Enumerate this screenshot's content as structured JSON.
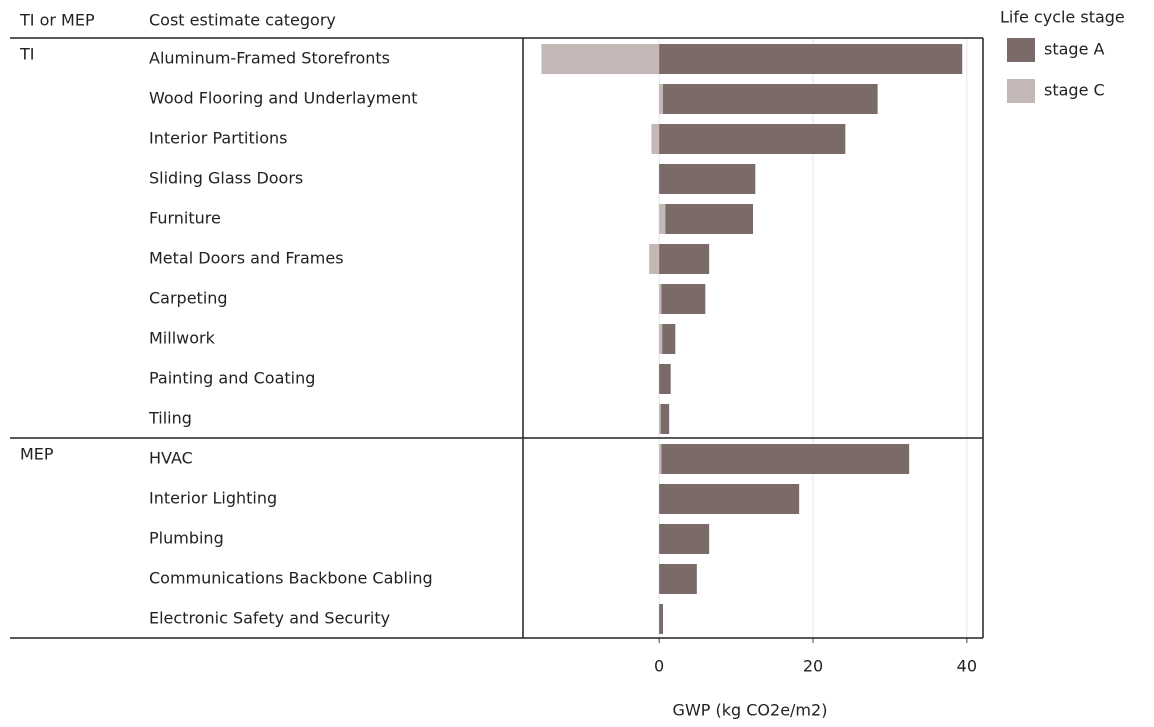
{
  "chart_data": {
    "type": "bar",
    "orientation": "horizontal",
    "stacked": true,
    "group_header": "TI or MEP",
    "category_header": "Cost estimate category",
    "group_labels": [
      "TI",
      null,
      null,
      null,
      null,
      null,
      null,
      null,
      null,
      null,
      "MEP",
      null,
      null,
      null,
      null
    ],
    "categories": [
      "Aluminum-Framed Storefronts",
      "Wood Flooring and Underlayment",
      "Interior Partitions",
      "Sliding Glass Doors",
      "Furniture",
      "Metal Doors and Frames",
      "Carpeting",
      "Millwork",
      "Painting and Coating",
      "Tiling",
      "HVAC",
      "Interior Lighting",
      "Plumbing",
      "Communications Backbone Cabling",
      "Electronic Safety and Security"
    ],
    "series": [
      {
        "name": "stage A",
        "color": "#7a6b68",
        "values": [
          39.4,
          27.9,
          24.2,
          12.5,
          11.4,
          6.5,
          5.7,
          1.7,
          1.5,
          1.1,
          32.2,
          18.2,
          6.5,
          4.9,
          0.5
        ]
      },
      {
        "name": "stage C",
        "color": "#c3b8b5",
        "values": [
          -15.3,
          0.5,
          -1.0,
          0,
          0.8,
          -1.3,
          0.3,
          0.4,
          0,
          0.2,
          0.3,
          0,
          0,
          0,
          0
        ]
      }
    ],
    "legend_title": "Life cycle stage",
    "legend_position": "right",
    "x_label": "GWP (kg CO2e/m2)",
    "xlim": [
      -17.7,
      42.1
    ],
    "xticks": [
      0,
      20,
      40
    ],
    "grid": true
  }
}
